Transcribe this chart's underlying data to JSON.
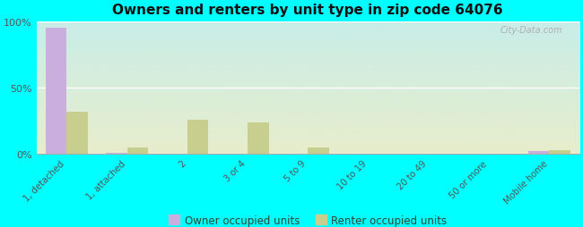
{
  "title": "Owners and renters by unit type in zip code 64076",
  "categories": [
    "1, detached",
    "1, attached",
    "2",
    "3 or 4",
    "5 to 9",
    "10 to 19",
    "20 to 49",
    "50 or more",
    "Mobile home"
  ],
  "owner_values": [
    95,
    1,
    0,
    0,
    0,
    0,
    0,
    0,
    2
  ],
  "renter_values": [
    32,
    5,
    26,
    24,
    5,
    0,
    0,
    0,
    3
  ],
  "owner_color": "#c9aede",
  "renter_color": "#c8cf8e",
  "bg_outer": "#00ffff",
  "plot_bg_top": "#c8ede8",
  "plot_bg_bottom": "#e8edcc",
  "ylim": [
    0,
    100
  ],
  "yticks": [
    0,
    50,
    100
  ],
  "ytick_labels": [
    "0%",
    "50%",
    "100%"
  ],
  "bar_width": 0.35,
  "legend_owner": "Owner occupied units",
  "legend_renter": "Renter occupied units",
  "watermark": "City-Data.com"
}
